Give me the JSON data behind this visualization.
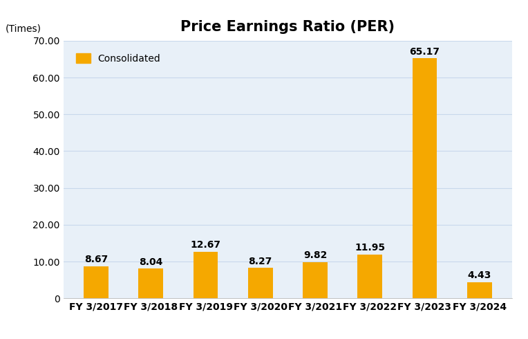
{
  "title": "Price Earnings Ratio (PER)",
  "ylabel": "(Times)",
  "categories": [
    "FY 3/2017",
    "FY 3/2018",
    "FY 3/2019",
    "FY 3/2020",
    "FY 3/2021",
    "FY 3/2022",
    "FY 3/2023",
    "FY 3/2024"
  ],
  "values": [
    8.67,
    8.04,
    12.67,
    8.27,
    9.82,
    11.95,
    65.17,
    4.43
  ],
  "bar_color": "#F5A800",
  "legend_label": "Consolidated",
  "ylim": [
    0,
    70
  ],
  "yticks": [
    0,
    10.0,
    20.0,
    30.0,
    40.0,
    50.0,
    60.0,
    70.0
  ],
  "background_color": "#E8F0F8",
  "fig_background": "#FFFFFF",
  "title_fontsize": 15,
  "label_fontsize": 10,
  "tick_fontsize": 10,
  "annotation_fontsize": 10
}
